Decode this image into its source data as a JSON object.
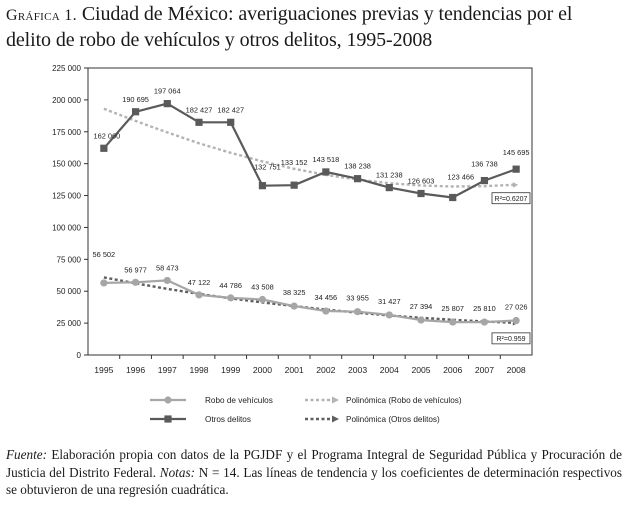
{
  "figure": {
    "label": "Gráfica 1.",
    "title": "Ciudad de México: averiguaciones previas y tendencias por el delito de robo de vehículos y otros delitos, 1995-2008"
  },
  "chart_data": {
    "type": "line",
    "x": [
      "1995",
      "1996",
      "1997",
      "1998",
      "1999",
      "2000",
      "2001",
      "2002",
      "2003",
      "2004",
      "2005",
      "2006",
      "2007",
      "2008"
    ],
    "ylim": [
      0,
      225000
    ],
    "yticks": [
      "0",
      "25 000",
      "50 000",
      "75 000",
      "100 000",
      "125 000",
      "150 000",
      "175 000",
      "200 000",
      "225 000"
    ],
    "series": [
      {
        "name": "Robo de vehículos",
        "values": [
          56502,
          56977,
          58473,
          47122,
          44786,
          43508,
          38325,
          34456,
          33955,
          31427,
          27394,
          25807,
          25810,
          27026
        ],
        "labels": [
          "56 502",
          "56 977",
          "58 473",
          "47 122",
          "44 786",
          "43 508",
          "38 325",
          "34 456",
          "33 955",
          "31 427",
          "27 394",
          "25 807",
          "25 810",
          "27 026"
        ],
        "color": "#a6a6a6",
        "marker": "circle"
      },
      {
        "name": "Otros delitos",
        "values": [
          162060,
          190695,
          197064,
          182427,
          182427,
          132751,
          133152,
          143518,
          138238,
          131238,
          126603,
          123466,
          136738,
          145695
        ],
        "labels": [
          "162 060",
          "190 695",
          "197 064",
          "182 427",
          "182 427",
          "132 751",
          "133 152",
          "143 518",
          "138 238",
          "131 238",
          "126 603",
          "123 466",
          "136 738",
          "145 695"
        ],
        "color": "#5a5a5a",
        "marker": "square"
      }
    ],
    "trendlines": [
      {
        "name": "Polinómica (Robo de vehículos)",
        "values": [
          193000,
          183500,
          174500,
          166000,
          158500,
          151800,
          146000,
          141200,
          137500,
          134700,
          132900,
          132100,
          132300,
          133500
        ],
        "r2": "R²=0.6207",
        "color": "#b3b3b3"
      },
      {
        "name": "Polinómica (Otros delitos)",
        "values": [
          60800,
          56200,
          51800,
          47900,
          44400,
          41200,
          38300,
          35600,
          33200,
          31000,
          29200,
          27600,
          26300,
          25200
        ],
        "r2": "R²=0.959",
        "color": "#5f5f5f"
      }
    ],
    "legend": {
      "robo": "Robo de vehículos",
      "otros": "Otros delitos",
      "poly_robo": "Polinómica (Robo de vehículos)",
      "poly_otros": "Polinómica (Otros delitos)"
    }
  },
  "note": {
    "fuente_label": "Fuente:",
    "fuente_text": "Elaboración propia con datos de la",
    "pgjdf": "PGJDF",
    "fuente_text2": "y el Programa Integral de Seguridad Pública y Procuración de Justicia del Distrito Federal.",
    "notas_label": "Notas:",
    "notas_text": "N = 14. Las líneas de tendencia y los coeficientes de determinación respectivos se obtuvieron de una regresión cuadrática."
  }
}
